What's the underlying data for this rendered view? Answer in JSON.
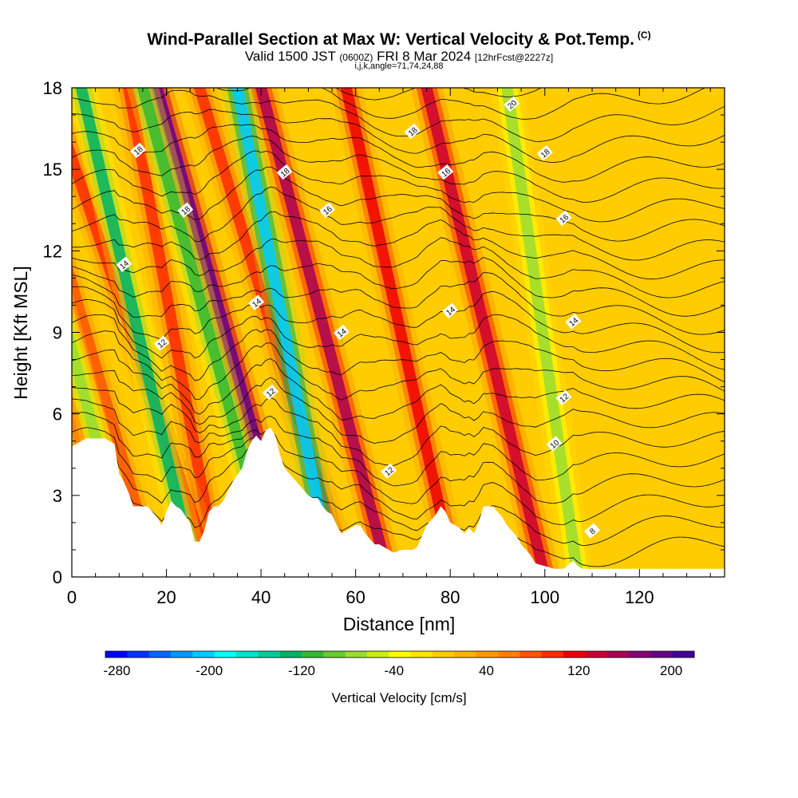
{
  "title": {
    "main": "Wind-Parallel Section at Max W: Vertical Velocity & Pot.Temp.",
    "copyright": "(C)",
    "valid_prefix": "Valid 1500 JST",
    "valid_utc": "(0600Z)",
    "valid_date": "FRI 8 Mar 2024",
    "forecast": "[12hrFcst@2227z]",
    "indices": "i,j,k,angle=71,74,24,88"
  },
  "chart_data": {
    "type": "heatmap",
    "xlabel": "Distance [nm]",
    "ylabel": "Height [Kft MSL]",
    "xlim": [
      0,
      138
    ],
    "ylim": [
      0,
      18
    ],
    "x_ticks": [
      "0",
      "20",
      "40",
      "60",
      "80",
      "100",
      "120"
    ],
    "y_ticks": [
      "0",
      "3",
      "6",
      "9",
      "12",
      "15",
      "18"
    ],
    "colorbar": {
      "label": "Vertical Velocity [cm/s]",
      "tick_labels": [
        "-280",
        "-200",
        "-120",
        "-40",
        "40",
        "120",
        "200"
      ],
      "min": -290,
      "max": 220,
      "colors": [
        "#0000ff",
        "#0033ff",
        "#0066ff",
        "#0099ff",
        "#00ccff",
        "#00ffff",
        "#00e6cc",
        "#00cc99",
        "#00b366",
        "#33b833",
        "#66cc33",
        "#99dd33",
        "#ccee11",
        "#ffff00",
        "#ffe600",
        "#ffcc00",
        "#ffb300",
        "#ff9900",
        "#ff7f00",
        "#ff5500",
        "#ff2a00",
        "#ee0000",
        "#cc0033",
        "#aa0055",
        "#880077",
        "#660088",
        "#440099"
      ]
    },
    "background_value": 10,
    "updraft_bands": [
      {
        "x0": 100,
        "x1": 75,
        "value": 140
      },
      {
        "x0": 81,
        "x1": 58,
        "value": 120
      },
      {
        "x0": 67,
        "x1": 40,
        "value": 150
      },
      {
        "x0": 58,
        "x1": 27,
        "value": 100
      },
      {
        "x0": 47,
        "x1": 18,
        "value": 200
      },
      {
        "x0": 31,
        "x1": 12,
        "value": 100
      },
      {
        "x0": 30,
        "x1": -5,
        "value": 90
      },
      {
        "x0": 18,
        "x1": -12,
        "value": 70
      },
      {
        "x0": 10,
        "x1": -20,
        "value": 60
      }
    ],
    "downdraft_bands": [
      {
        "x0": 107,
        "x1": 92,
        "value": -70
      },
      {
        "x0": 55,
        "x1": 35,
        "value": -200
      },
      {
        "x0": 43,
        "x1": 15,
        "value": -110
      },
      {
        "x0": 26,
        "x1": 2,
        "value": -130
      },
      {
        "x0": 13,
        "x1": -15,
        "value": -80
      }
    ],
    "terrain": {
      "x": [
        0,
        3,
        7,
        9,
        10,
        11,
        12,
        13,
        16,
        18,
        19,
        20,
        21,
        22,
        23,
        25,
        26,
        27,
        28,
        29,
        30,
        31,
        32,
        34,
        36,
        37,
        38,
        39,
        40,
        41,
        42,
        43,
        44,
        45,
        46,
        47,
        48,
        49,
        50,
        51,
        52,
        53,
        54,
        55,
        56,
        57,
        59,
        60,
        61,
        62,
        64,
        65,
        67,
        68,
        70,
        72,
        73,
        74,
        75,
        77,
        78,
        79,
        80,
        82,
        83,
        84,
        85,
        86,
        87,
        89,
        90,
        91,
        92,
        94,
        95,
        97,
        98,
        100,
        102,
        104,
        106,
        107,
        108,
        110,
        112,
        115,
        120,
        125,
        130,
        138
      ],
      "height": [
        4.8,
        5.1,
        5.1,
        4.9,
        3.8,
        3.5,
        3.1,
        2.6,
        2.6,
        2.2,
        1.9,
        2.4,
        2.8,
        2.6,
        2.5,
        2.0,
        1.3,
        1.3,
        1.7,
        2.4,
        2.6,
        2.6,
        2.8,
        3.5,
        4.0,
        4.6,
        5.0,
        5.2,
        5.0,
        5.4,
        5.5,
        5.2,
        4.5,
        4.0,
        3.8,
        3.6,
        3.4,
        3.2,
        3.0,
        2.9,
        2.9,
        2.6,
        2.4,
        2.3,
        1.9,
        1.6,
        1.8,
        1.9,
        1.9,
        1.6,
        1.2,
        1.2,
        1.0,
        0.9,
        1.0,
        1.0,
        1.1,
        1.5,
        1.9,
        2.3,
        2.6,
        2.4,
        2.0,
        1.8,
        1.6,
        1.8,
        1.6,
        2.0,
        2.6,
        2.6,
        2.4,
        2.2,
        1.9,
        1.5,
        1.2,
        0.8,
        0.5,
        0.4,
        0.3,
        0.3,
        0.6,
        0.4,
        0.3,
        0.3,
        0.3,
        0.3,
        0.3,
        0.3,
        0.3,
        0.3
      ]
    },
    "theta_label_suffix_note": "",
    "contour_labels": [
      {
        "text": "20",
        "x": 93,
        "y": 17.4
      },
      {
        "text": "18",
        "x": 14,
        "y": 15.7
      },
      {
        "text": "18",
        "x": 72,
        "y": 16.4
      },
      {
        "text": "18",
        "x": 100,
        "y": 15.6
      },
      {
        "text": "18",
        "x": 45,
        "y": 14.9
      },
      {
        "text": "16",
        "x": 79,
        "y": 14.9
      },
      {
        "text": "18",
        "x": 24,
        "y": 13.5
      },
      {
        "text": "16",
        "x": 54,
        "y": 13.5
      },
      {
        "text": "16",
        "x": 104,
        "y": 13.2
      },
      {
        "text": "14",
        "x": 11,
        "y": 11.5
      },
      {
        "text": "14",
        "x": 39,
        "y": 10.1
      },
      {
        "text": "14",
        "x": 80,
        "y": 9.8
      },
      {
        "text": "14",
        "x": 57,
        "y": 9.0
      },
      {
        "text": "14",
        "x": 106,
        "y": 9.4
      },
      {
        "text": "12",
        "x": 19,
        "y": 8.6
      },
      {
        "text": "12",
        "x": 42,
        "y": 6.8
      },
      {
        "text": "12",
        "x": 104,
        "y": 6.6
      },
      {
        "text": "10",
        "x": 102,
        "y": 4.9
      },
      {
        "text": "12",
        "x": 67,
        "y": 3.9
      },
      {
        "text": "8",
        "x": 110,
        "y": 1.7
      }
    ]
  }
}
